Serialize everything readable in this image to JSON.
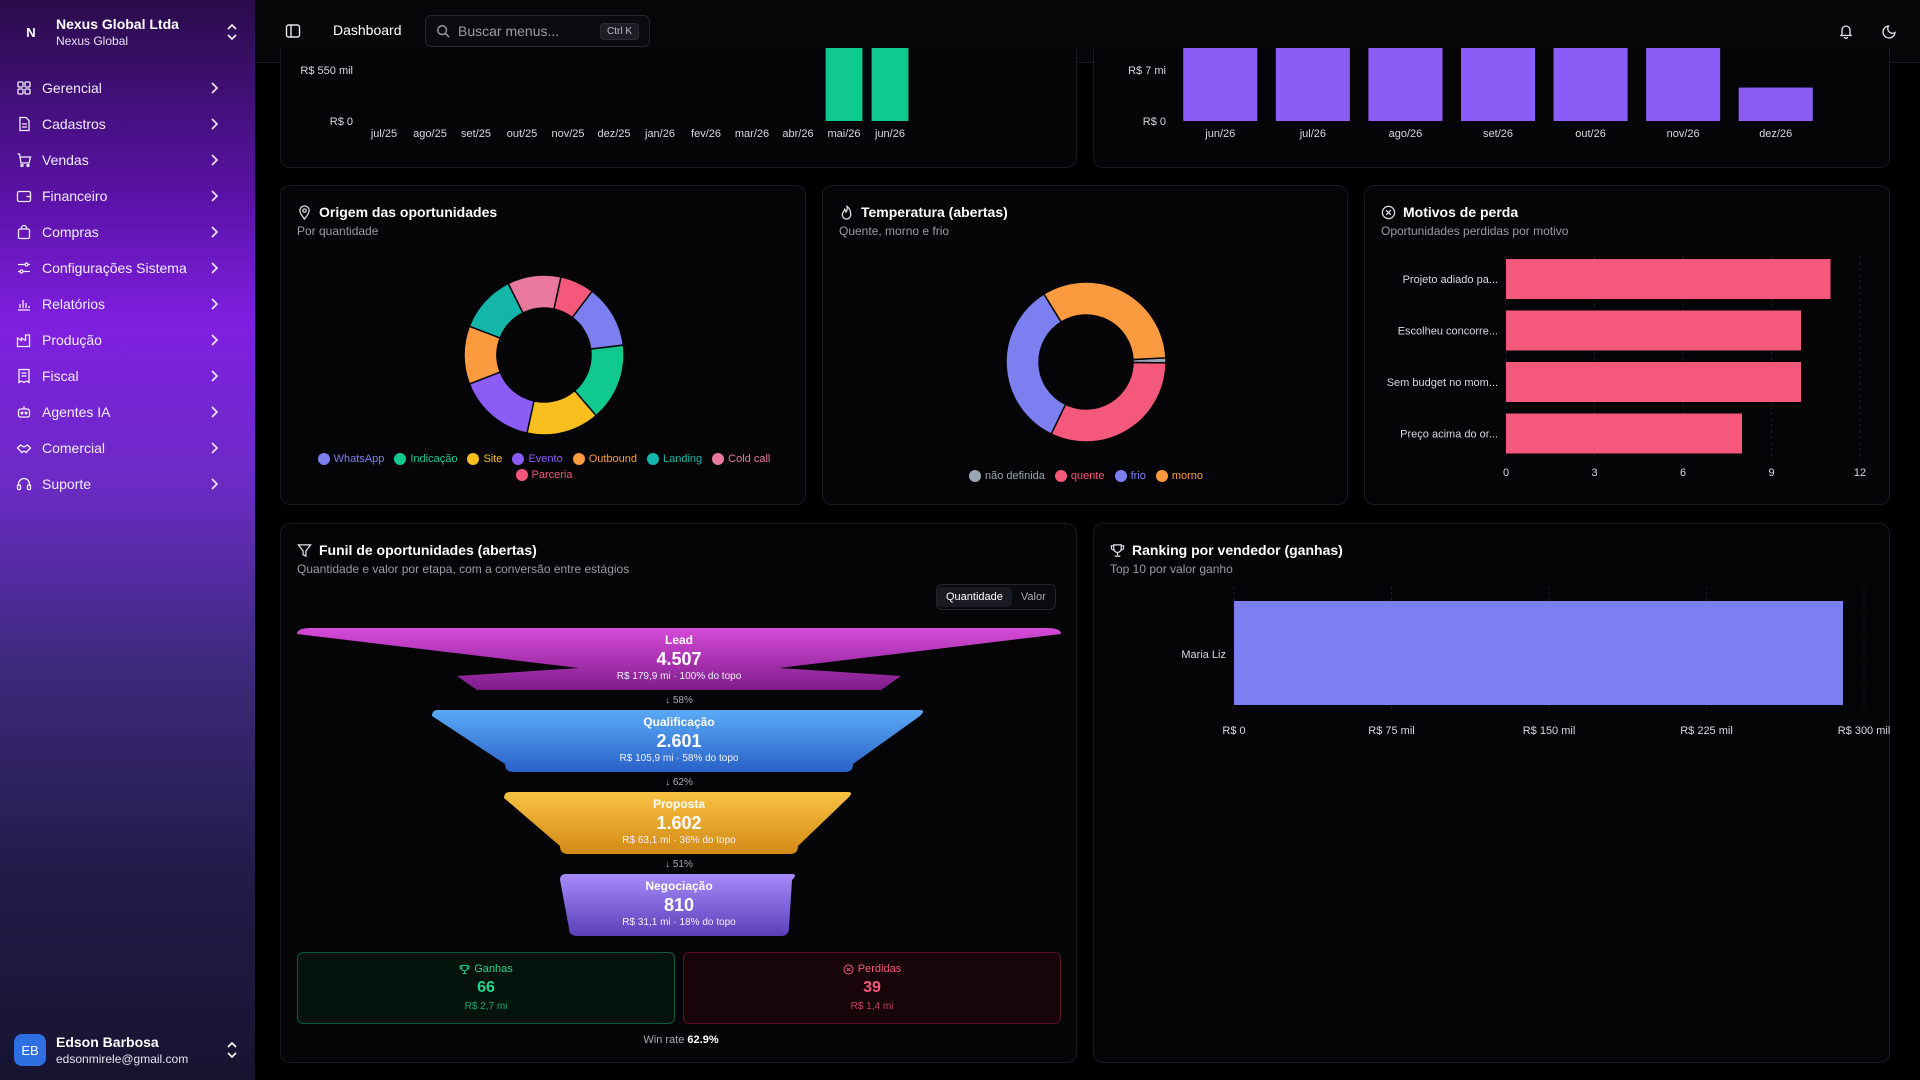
{
  "org": {
    "initial": "N",
    "name": "Nexus Global Ltda",
    "sub": "Nexus Global"
  },
  "nav": [
    {
      "label": "Gerencial",
      "icon": "dashboard-icon"
    },
    {
      "label": "Cadastros",
      "icon": "document-icon"
    },
    {
      "label": "Vendas",
      "icon": "cart-icon"
    },
    {
      "label": "Financeiro",
      "icon": "wallet-icon"
    },
    {
      "label": "Compras",
      "icon": "bag-icon"
    },
    {
      "label": "Configurações Sistema",
      "icon": "settings-icon"
    },
    {
      "label": "Relatórios",
      "icon": "bar-chart-icon"
    },
    {
      "label": "Produção",
      "icon": "factory-icon"
    },
    {
      "label": "Fiscal",
      "icon": "receipt-icon"
    },
    {
      "label": "Agentes IA",
      "icon": "bot-icon"
    },
    {
      "label": "Comercial",
      "icon": "handshake-icon"
    },
    {
      "label": "Suporte",
      "icon": "headset-icon"
    }
  ],
  "user": {
    "initials": "EB",
    "name": "Edson Barbosa",
    "email": "edsonmirele@gmail.com"
  },
  "topbar": {
    "title": "Dashboard",
    "search_placeholder": "Buscar menus...",
    "shortcut": "Ctrl K"
  },
  "colors": {
    "accent_purple": "#7f1fe0",
    "green": "#10c98f",
    "violet": "#8b5cf6",
    "pink": "#f4587a",
    "indigo": "#7b7ff0"
  },
  "chart_data": [
    {
      "type": "bar",
      "categories": [
        "jul/25",
        "ago/25",
        "set/25",
        "out/25",
        "nov/25",
        "dez/25",
        "jan/26",
        "fev/26",
        "mar/26",
        "abr/26",
        "mai/26",
        "jun/26"
      ],
      "values": [
        0,
        0,
        0,
        0,
        0,
        0,
        0,
        0,
        0,
        0,
        1100,
        1100
      ],
      "yticks": [
        "R$ 550 mil",
        "R$ 0"
      ],
      "color": "#10c98f"
    },
    {
      "type": "bar",
      "categories": [
        "jun/26",
        "jul/26",
        "ago/26",
        "set/26",
        "out/26",
        "nov/26",
        "dez/26"
      ],
      "values": [
        12,
        12,
        12,
        12,
        12,
        12,
        5.5
      ],
      "yticks": [
        "R$ 7 mi",
        "R$ 0"
      ],
      "color": "#8b5cf6"
    },
    {
      "type": "pie",
      "title": "Origem das oportunidades",
      "subtitle": "Por quantidade",
      "slices": [
        {
          "name": "WhatsApp",
          "value": 13,
          "color": "#7b7ff0"
        },
        {
          "name": "Indicação",
          "value": 16,
          "color": "#10c98f"
        },
        {
          "name": "Site",
          "value": 15,
          "color": "#f8bf1f"
        },
        {
          "name": "Evento",
          "value": 16,
          "color": "#8b5cf6"
        },
        {
          "name": "Outbound",
          "value": 12,
          "color": "#fb9a3e"
        },
        {
          "name": "Landing",
          "value": 12,
          "color": "#13b6a8"
        },
        {
          "name": "Cold call",
          "value": 11,
          "color": "#e9789e"
        },
        {
          "name": "Parceria",
          "value": 7,
          "color": "#f4587a"
        }
      ]
    },
    {
      "type": "pie",
      "title": "Temperatura (abertas)",
      "subtitle": "Quente, morno e frio",
      "slices": [
        {
          "name": "não definida",
          "value": 1,
          "color": "#9aa4b2"
        },
        {
          "name": "quente",
          "value": 32,
          "color": "#f4587a"
        },
        {
          "name": "frio",
          "value": 34,
          "color": "#7b7ff0"
        },
        {
          "name": "morno",
          "value": 33,
          "color": "#fb9a3e"
        }
      ]
    },
    {
      "type": "bar",
      "orientation": "horizontal",
      "title": "Motivos de perda",
      "subtitle": "Oportunidades perdidas por motivo",
      "categories": [
        "Projeto adiado pa...",
        "Escolheu concorre...",
        "Sem budget no mom...",
        "Preço acima do or..."
      ],
      "values": [
        11,
        10,
        10,
        8
      ],
      "xticks": [
        "0",
        "3",
        "6",
        "9",
        "12"
      ],
      "xlim": [
        0,
        12
      ],
      "color": "#f4587a"
    },
    {
      "type": "bar",
      "orientation": "horizontal",
      "title": "Ranking por vendedor (ganhas)",
      "subtitle": "Top 10 por valor ganho",
      "categories": [
        "Maria Liz"
      ],
      "values": [
        290
      ],
      "xticks": [
        "R$ 0",
        "R$ 75 mil",
        "R$ 150 mil",
        "R$ 225 mil",
        "R$ 300 mil"
      ],
      "xlim": [
        0,
        300
      ],
      "color": "#7b7ff0"
    }
  ],
  "funnel": {
    "title": "Funil de oportunidades (abertas)",
    "subtitle": "Quantidade e valor por etapa, com a conversão entre estágios",
    "toggle": {
      "active": "Quantidade",
      "inactive": "Valor"
    },
    "stages": [
      {
        "name": "Lead",
        "value": "4.507",
        "meta": "R$ 179,9 mi · 100% do topo",
        "color_top": "#d64ad8",
        "color_bot": "#7f1d8c"
      },
      {
        "name": "Qualificação",
        "value": "2.601",
        "meta": "R$ 105,9 mi · 58% do topo",
        "color_top": "#5aa9f6",
        "color_bot": "#2a62c9"
      },
      {
        "name": "Proposta",
        "value": "1.602",
        "meta": "R$ 63,1 mi · 36% do topo",
        "color_top": "#f8c243",
        "color_bot": "#d38a16"
      },
      {
        "name": "Negociação",
        "value": "810",
        "meta": "R$ 31,1 mi · 18% do topo",
        "color_top": "#a78bfa",
        "color_bot": "#5b3fb8"
      }
    ],
    "conversions": [
      "↓ 58%",
      "↓ 62%",
      "↓ 51%"
    ],
    "won": {
      "label": "Ganhas",
      "value": "66",
      "sub": "R$ 2,7 mi"
    },
    "lost": {
      "label": "Perdidas",
      "value": "39",
      "sub": "R$ 1,4 mi"
    },
    "winrate_label": "Win rate",
    "winrate_value": "62.9%"
  }
}
